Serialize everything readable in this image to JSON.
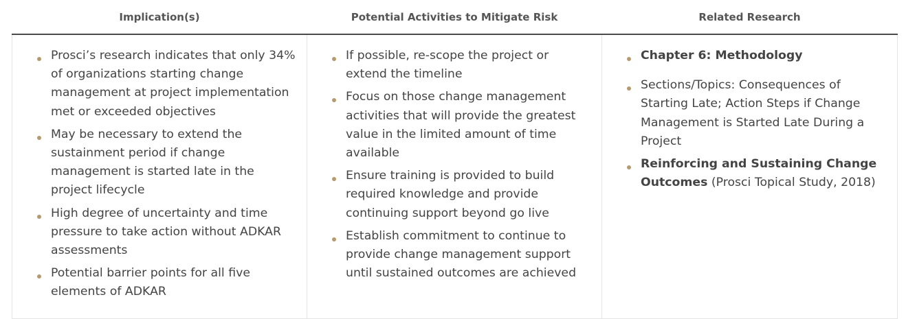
{
  "table": {
    "headers": [
      "Implication(s)",
      "Potential Activities to Mitigate Risk",
      "Related Research"
    ],
    "implications": [
      "Prosci’s research indicates that only 34% of organizations starting change management at project implementation met or exceeded objectives",
      "May be necessary to extend the sustainment period if change management is started late in the project lifecycle",
      "High degree of uncertainty and time pressure to take action without ADKAR assessments",
      "Potential barrier points for all five elements of ADKAR"
    ],
    "activities": [
      "If possible, re-scope the project or extend the timeline",
      "Focus on those change management activities that will provide the greatest value in the limited amount of time available",
      "Ensure training is provided to build required knowledge and provide continuing support beyond go live",
      "Establish commitment to continue to provide change management support until sustained outcomes are achieved"
    ],
    "research": {
      "item1_bold": "Chapter 6: Methodology",
      "item2": "Sections/Topics: Consequences of Starting Late; Action Steps if Change Management is Started Late During a Project",
      "item3_bold": "Reinforcing and Sustaining Change Outcomes",
      "item3_rest": " (Prosci Topical Study, 2018)"
    }
  },
  "colors": {
    "bullet": "#b59a6f",
    "header_rule": "#4a4a4a",
    "cell_border": "#e4e4e4",
    "text": "#444444"
  }
}
